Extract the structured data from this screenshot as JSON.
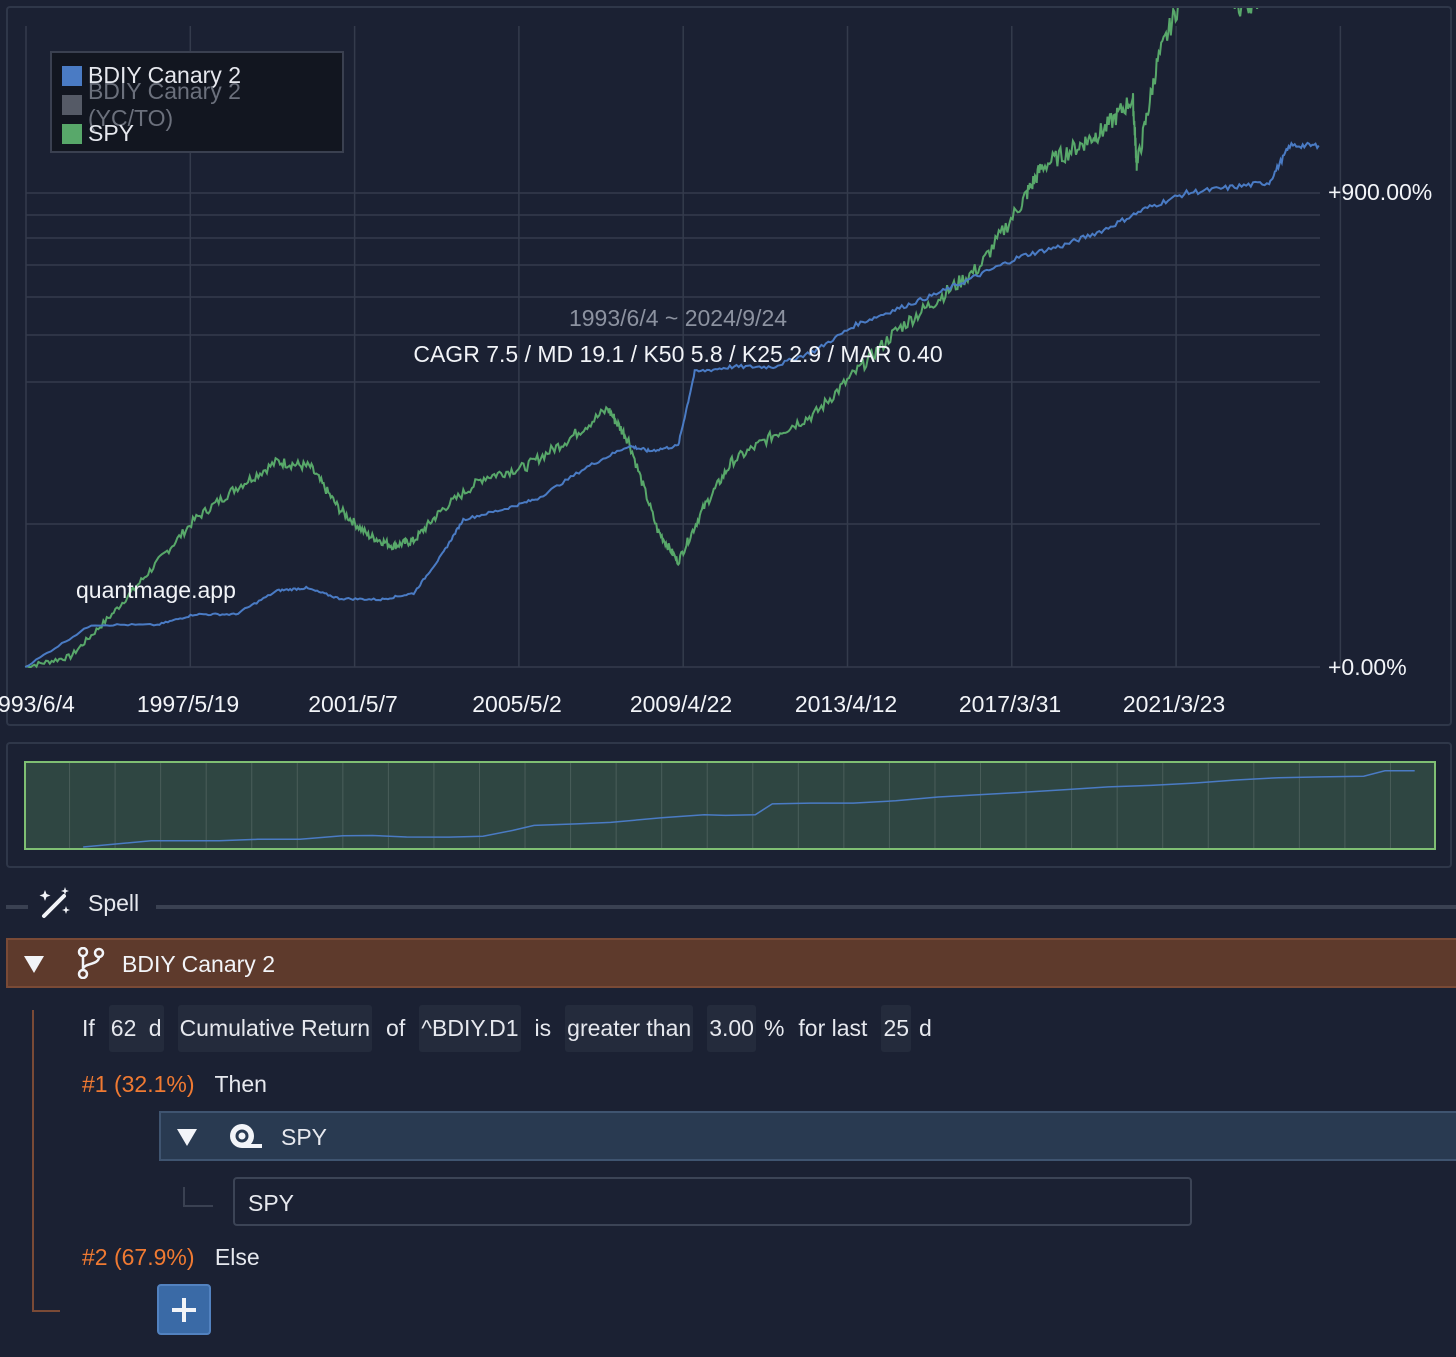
{
  "chart": {
    "legend": [
      {
        "label": "BDIY Canary 2",
        "color": "#4a7bc4",
        "dim": false
      },
      {
        "label": "BDIY Canary 2 (YC/TO)",
        "color": "#555a66",
        "dim": true
      },
      {
        "label": "SPY",
        "color": "#58a86a",
        "dim": false
      }
    ],
    "date_range": "1993/6/4 ~ 2024/9/24",
    "stats": "CAGR 7.5 / MD 19.1 / K50 5.8 / K25 2.9 / MAR 0.40",
    "watermark": "quantmage.app",
    "y_labels": [
      "+900.00%",
      "+0.00%"
    ],
    "x_labels": [
      "1993/6/4",
      "1997/5/19",
      "2001/5/7",
      "2005/5/2",
      "2009/4/22",
      "2013/4/12",
      "2017/3/31",
      "2021/3/23"
    ]
  },
  "chart_data": {
    "type": "line",
    "x_range": [
      "1993/6/4",
      "2024/9/24"
    ],
    "y_labels_shown": [
      "+0.00%",
      "+900.00%"
    ],
    "series": [
      {
        "name": "BDIY Canary 2",
        "color": "#4a7bc4",
        "x": [
          1993.4,
          1995.0,
          1996.6,
          1997.5,
          1998.5,
          1999.5,
          2000.2,
          2001.0,
          2002.0,
          2002.8,
          2003.5,
          2004.0,
          2005.0,
          2005.8,
          2007.0,
          2008.0,
          2008.5,
          2009.2,
          2009.6,
          2010.5,
          2011.5,
          2012.5,
          2013.5,
          2014.5,
          2015.5,
          2016.5,
          2017.5,
          2018.5,
          2019.5,
          2020.5,
          2021.5,
          2022.5,
          2023.5,
          2024.0,
          2024.7
        ],
        "y": [
          0,
          80,
          80,
          100,
          100,
          145,
          150,
          130,
          128,
          140,
          215,
          280,
          300,
          320,
          380,
          420,
          410,
          420,
          560,
          570,
          570,
          600,
          650,
          680,
          710,
          745,
          780,
          800,
          830,
          870,
          900,
          910,
          920,
          990,
          990
        ]
      },
      {
        "name": "SPY",
        "color": "#58a86a",
        "x": [
          1993.4,
          1994.5,
          1995.5,
          1996.5,
          1997.5,
          1998.5,
          1999.5,
          2000.3,
          2001.0,
          2001.7,
          2002.3,
          2002.8,
          2003.5,
          2004.5,
          2005.5,
          2006.5,
          2007.5,
          2008.0,
          2008.7,
          2009.2,
          2009.8,
          2010.5,
          2011.5,
          2012.5,
          2013.5,
          2014.5,
          2015.5,
          2016.5,
          2017.5,
          2018.0,
          2018.9,
          2019.5,
          2020.2,
          2020.3,
          2020.8,
          2021.5,
          2022.0,
          2022.8,
          2023.5,
          2024.0,
          2024.7
        ]
      }
    ]
  },
  "spell": {
    "label": "Spell"
  },
  "group": {
    "title": "BDIY Canary 2"
  },
  "condition": {
    "if": "If",
    "window": "62",
    "window_unit": "d",
    "metric": "Cumulative Return",
    "of": "of",
    "ticker": "^BDIY.D1",
    "is": "is",
    "comparator": "greater than",
    "threshold": "3.00",
    "threshold_unit": "%",
    "for_last": "for last",
    "days": "25",
    "days_unit": "d"
  },
  "branches": {
    "then": {
      "index": "#1 (32.1%)",
      "label": "Then"
    },
    "else": {
      "index": "#2 (67.9%)",
      "label": "Else"
    }
  },
  "asset": {
    "header": "SPY",
    "input_value": "SPY"
  }
}
